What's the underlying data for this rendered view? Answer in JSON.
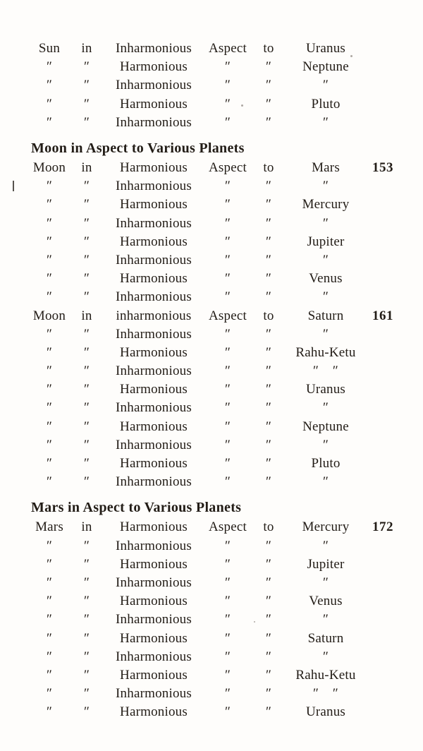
{
  "document": {
    "background": "#fefdfb",
    "ink": "#221c16"
  },
  "artifact": {
    "mark": ""
  },
  "sections": [
    {
      "heading": "",
      "rows": [
        [
          "Sun",
          "in",
          "Inharmonious",
          "Aspect",
          "to",
          "Uranus",
          ""
        ],
        [
          "″",
          "″",
          "Harmonious",
          "″",
          "″",
          "Neptune",
          ""
        ],
        [
          "″",
          "″",
          "Inharmonious",
          "″",
          "″",
          "″",
          ""
        ],
        [
          "″",
          "″",
          "Harmonious",
          "″",
          "″",
          "Pluto",
          ""
        ],
        [
          "″",
          "″",
          "Inharmonious",
          "″",
          "″",
          "″",
          ""
        ]
      ]
    },
    {
      "heading": "Moon in Aspect to Various Planets",
      "rows": [
        [
          "Moon",
          "in",
          "Harmonious",
          "Aspect",
          "to",
          "Mars",
          "153"
        ],
        [
          "″",
          "″",
          "Inharmonious",
          "″",
          "″",
          "″",
          ""
        ],
        [
          "″",
          "″",
          "Harmonious",
          "″",
          "″",
          "Mercury",
          ""
        ],
        [
          "″",
          "″",
          "Inharmonious",
          "″",
          "″",
          "″",
          ""
        ],
        [
          "″",
          "″",
          "Harmonious",
          "″",
          "″",
          "Jupiter",
          ""
        ],
        [
          "″",
          "″",
          "Inharmonious",
          "″",
          "″",
          "″",
          ""
        ],
        [
          "″",
          "″",
          "Harmonious",
          "″",
          "″",
          "Venus",
          ""
        ],
        [
          "″",
          "″",
          "Inharmonious",
          "″",
          "″",
          "″",
          ""
        ],
        [
          "Moon",
          "in",
          "inharmonious",
          "Aspect",
          "to",
          "Saturn",
          "161"
        ],
        [
          "″",
          "″",
          "Inharmonious",
          "″",
          "″",
          "″",
          ""
        ],
        [
          "″",
          "″",
          "Harmonious",
          "″",
          "″",
          "Rahu-Ketu",
          ""
        ],
        [
          "″",
          "″",
          "Inharmonious",
          "″",
          "″",
          "″    ″",
          ""
        ],
        [
          "″",
          "″",
          "Harmonious",
          "″",
          "″",
          "Uranus",
          ""
        ],
        [
          "″",
          "″",
          "Inharmonious",
          "″",
          "″",
          "″",
          ""
        ],
        [
          "″",
          "″",
          "Harmonious",
          "″",
          "″",
          "Neptune",
          ""
        ],
        [
          "″",
          "″",
          "Inharmonious",
          "″",
          "″",
          "″",
          ""
        ],
        [
          "″",
          "″",
          "Harmonious",
          "″",
          "″",
          "Pluto",
          ""
        ],
        [
          "″",
          "″",
          "Inharmonious",
          "″",
          "″",
          "″",
          ""
        ]
      ]
    },
    {
      "heading": "Mars in Aspect to Various Planets",
      "rows": [
        [
          "Mars",
          "in",
          "Harmonious",
          "Aspect",
          "to",
          "Mercury",
          "172"
        ],
        [
          "″",
          "″",
          "Inharmonious",
          "″",
          "″",
          "″",
          ""
        ],
        [
          "″",
          "″",
          "Harmonious",
          "″",
          "″",
          "Jupiter",
          ""
        ],
        [
          "″",
          "″",
          "Inharmonious",
          "″",
          "″",
          "″",
          ""
        ],
        [
          "″",
          "″",
          "Harmonious",
          "″",
          "″",
          "Venus",
          ""
        ],
        [
          "″",
          "″",
          "Inharmonious",
          "″",
          "″",
          "″",
          ""
        ],
        [
          "″",
          "″",
          "Harmonious",
          "″",
          "″",
          "Saturn",
          ""
        ],
        [
          "″",
          "″",
          "Inharmonious",
          "″",
          "″",
          "″",
          ""
        ],
        [
          "″",
          "″",
          "Harmonious",
          "″",
          "″",
          "Rahu-Ketu",
          ""
        ],
        [
          "″",
          "″",
          "Inharmonious",
          "″",
          "″",
          "″    ″",
          ""
        ],
        [
          "″",
          "″",
          "Harmonious",
          "″",
          "″",
          "Uranus",
          ""
        ]
      ]
    }
  ]
}
